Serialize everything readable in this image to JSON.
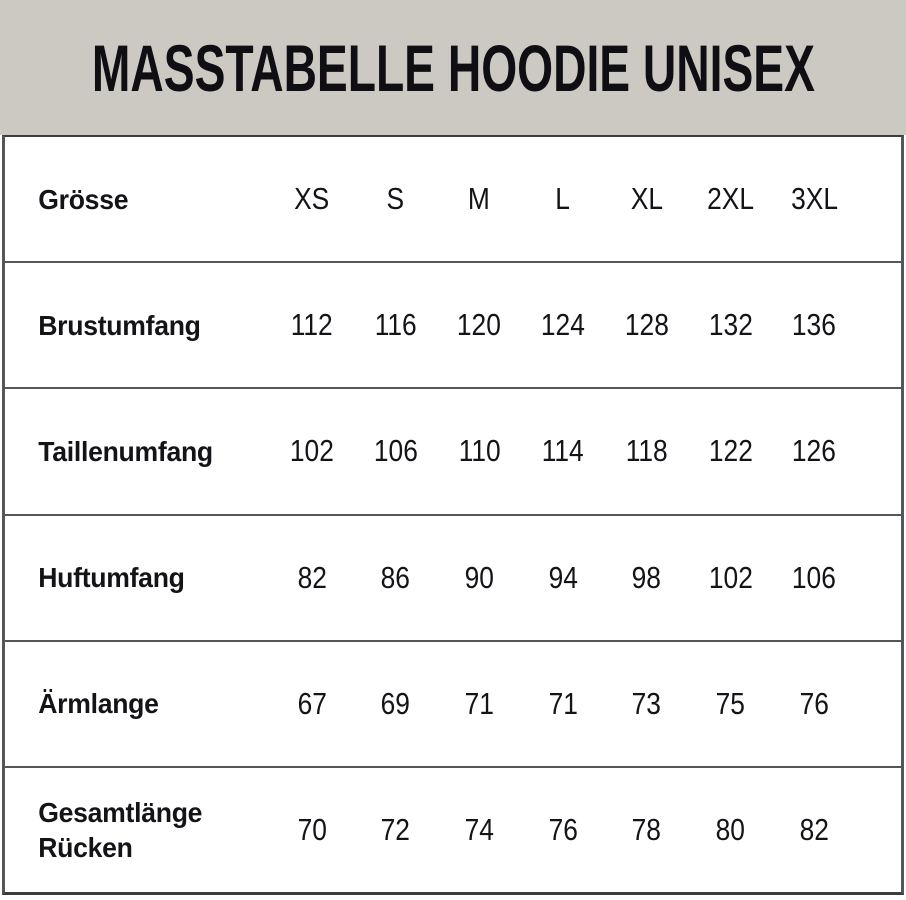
{
  "chart_data": {
    "type": "table",
    "title": "MASSTABELLE HOODIE UNISEX",
    "corner_label": "Grösse",
    "columns": [
      "XS",
      "S",
      "M",
      "L",
      "XL",
      "2XL",
      "3XL"
    ],
    "rows": [
      {
        "label": "Brustumfang",
        "values": [
          "112",
          "116",
          "120",
          "124",
          "128",
          "132",
          "136"
        ]
      },
      {
        "label": "Taillenumfang",
        "values": [
          "102",
          "106",
          "110",
          "114",
          "118",
          "122",
          "126"
        ]
      },
      {
        "label": "Huftumfang",
        "values": [
          "82",
          "86",
          "90",
          "94",
          "98",
          "102",
          "106"
        ]
      },
      {
        "label": "Ärmlange",
        "values": [
          "67",
          "69",
          "71",
          "71",
          "73",
          "75",
          "76"
        ]
      },
      {
        "label": "Gesamtlänge Rücken",
        "values": [
          "70",
          "72",
          "74",
          "76",
          "78",
          "80",
          "82"
        ]
      }
    ],
    "colors": {
      "header_background": "#ccc8c2",
      "table_background": "#ffffff",
      "border": "#55555a",
      "text": "#0e0e13"
    },
    "layout": {
      "grid": "horizontal-row-separators",
      "legend": "none"
    }
  }
}
